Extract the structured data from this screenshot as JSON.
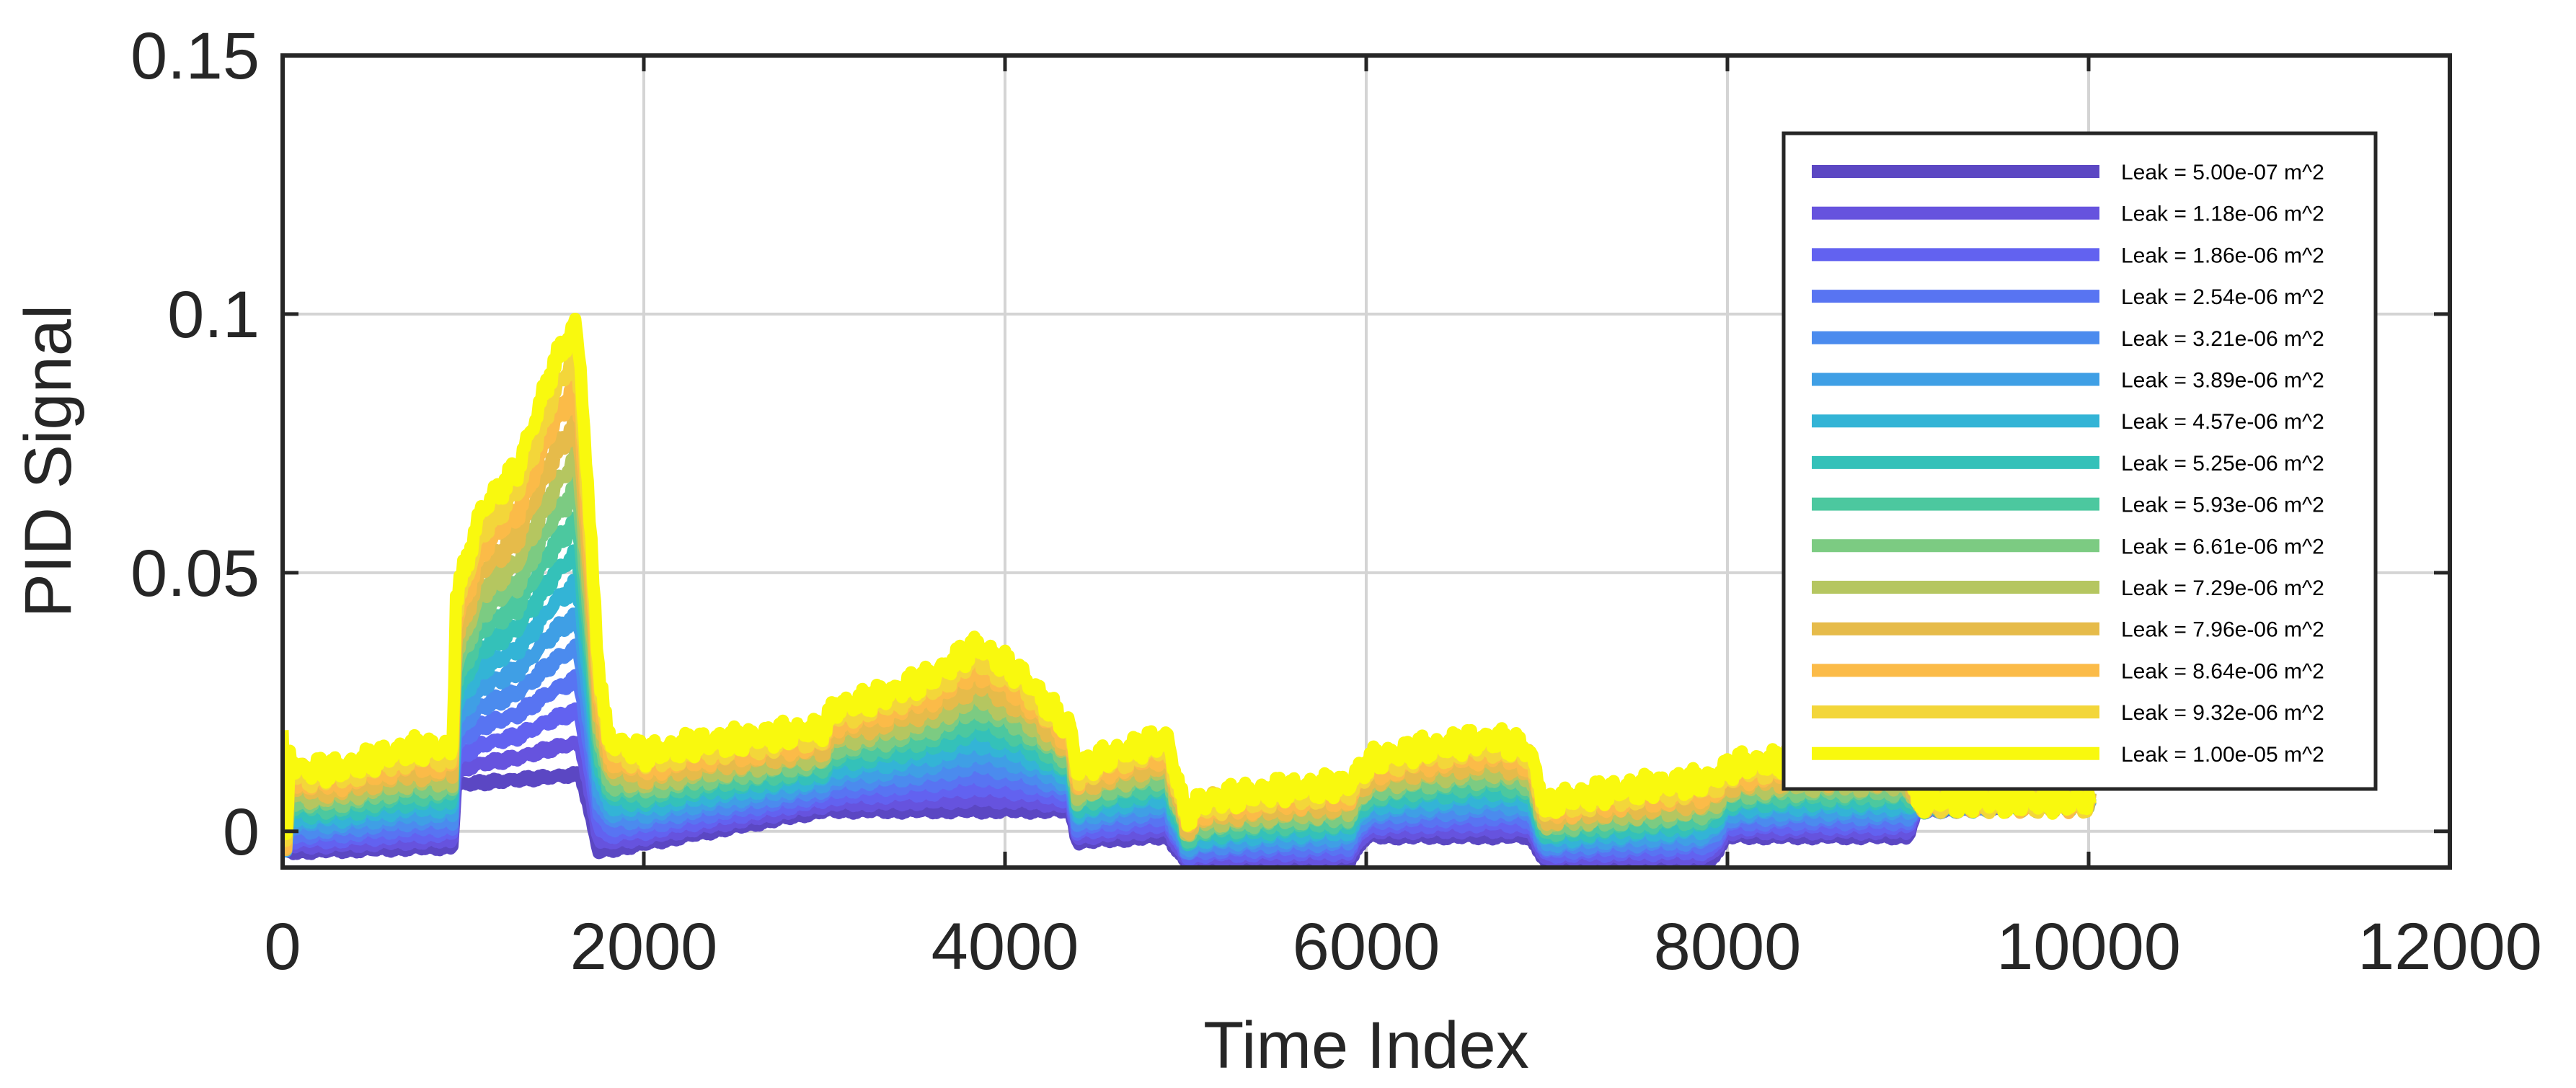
{
  "chart_data": {
    "type": "line",
    "title": "",
    "xlabel": "Time Index",
    "ylabel": "PID Signal",
    "xlim": [
      0,
      12000
    ],
    "ylim": [
      -0.007,
      0.15
    ],
    "xticks": [
      0,
      2000,
      4000,
      6000,
      8000,
      10000,
      12000
    ],
    "xtick_labels": [
      "0",
      "2000",
      "4000",
      "6000",
      "8000",
      "10000",
      "12000"
    ],
    "yticks": [
      0,
      0.05,
      0.1,
      0.15
    ],
    "ytick_labels": [
      "0",
      "0.05",
      "0.1",
      "0.15"
    ],
    "grid": true,
    "legend_position": "top-right",
    "baseline_profile": {
      "x": [
        0,
        20,
        40,
        100,
        300,
        500,
        700,
        940,
        960,
        1100,
        1300,
        1500,
        1620,
        1650,
        1700,
        1750,
        1800,
        2000,
        2300,
        2600,
        3000,
        3060,
        3300,
        3600,
        3850,
        4100,
        4300,
        4360,
        4400,
        4600,
        4900,
        5000,
        5100,
        5500,
        5900,
        6000,
        6050,
        6300,
        6700,
        6900,
        7000,
        7050,
        7400,
        7900,
        8000,
        8060,
        8400,
        8800,
        9000,
        9050,
        9500,
        10000,
        10010
      ],
      "y": [
        0.018,
        -0.003,
        0.014,
        0.012,
        0.012,
        0.014,
        0.016,
        0.016,
        0.045,
        0.062,
        0.07,
        0.09,
        0.098,
        0.09,
        0.06,
        0.032,
        0.018,
        0.015,
        0.017,
        0.018,
        0.02,
        0.024,
        0.026,
        0.03,
        0.036,
        0.03,
        0.022,
        0.02,
        0.012,
        0.015,
        0.018,
        0.003,
        0.006,
        0.008,
        0.009,
        0.013,
        0.014,
        0.016,
        0.018,
        0.016,
        0.004,
        0.006,
        0.008,
        0.01,
        0.012,
        0.013,
        0.014,
        0.014,
        0.014,
        0.006,
        0.006,
        0.006,
        0.006
      ]
    },
    "offset_profile": {
      "x": [
        0,
        940,
        960,
        1650,
        1750,
        3000,
        4360,
        4400,
        4900,
        5000,
        5900,
        6000,
        6900,
        7000,
        7900,
        8000,
        9000,
        9050,
        10010
      ],
      "y": [
        -0.004,
        -0.003,
        0.009,
        0.011,
        -0.004,
        0.004,
        0.004,
        -0.002,
        -0.001,
        -0.006,
        -0.006,
        -0.001,
        -0.001,
        -0.006,
        -0.006,
        -0.001,
        -0.001,
        0.004,
        0.005
      ]
    },
    "series": [
      {
        "name": "Leak = 5.00e-07 m^2",
        "color": "#5b47c3",
        "scale": 0.0
      },
      {
        "name": "Leak = 1.18e-06 m^2",
        "color": "#6653de",
        "scale": 0.07
      },
      {
        "name": "Leak = 1.86e-06 m^2",
        "color": "#6262f0",
        "scale": 0.14
      },
      {
        "name": "Leak = 2.54e-06 m^2",
        "color": "#5874f2",
        "scale": 0.21
      },
      {
        "name": "Leak = 3.21e-06 m^2",
        "color": "#4b8bee",
        "scale": 0.28
      },
      {
        "name": "Leak = 3.89e-06 m^2",
        "color": "#3f9fe5",
        "scale": 0.35
      },
      {
        "name": "Leak = 4.57e-06 m^2",
        "color": "#33b4d6",
        "scale": 0.42
      },
      {
        "name": "Leak = 5.25e-06 m^2",
        "color": "#34c1b9",
        "scale": 0.49
      },
      {
        "name": "Leak = 5.93e-06 m^2",
        "color": "#4cc89f",
        "scale": 0.56
      },
      {
        "name": "Leak = 6.61e-06 m^2",
        "color": "#7ccb82",
        "scale": 0.63
      },
      {
        "name": "Leak = 7.29e-06 m^2",
        "color": "#b5c660",
        "scale": 0.7
      },
      {
        "name": "Leak = 7.96e-06 m^2",
        "color": "#e6bb4a",
        "scale": 0.78
      },
      {
        "name": "Leak = 8.64e-06 m^2",
        "color": "#fbbb48",
        "scale": 0.86
      },
      {
        "name": "Leak = 9.32e-06 m^2",
        "color": "#f3d63a",
        "scale": 0.93
      },
      {
        "name": "Leak = 1.00e-05 m^2",
        "color": "#f9f90e",
        "scale": 1.0
      }
    ]
  }
}
